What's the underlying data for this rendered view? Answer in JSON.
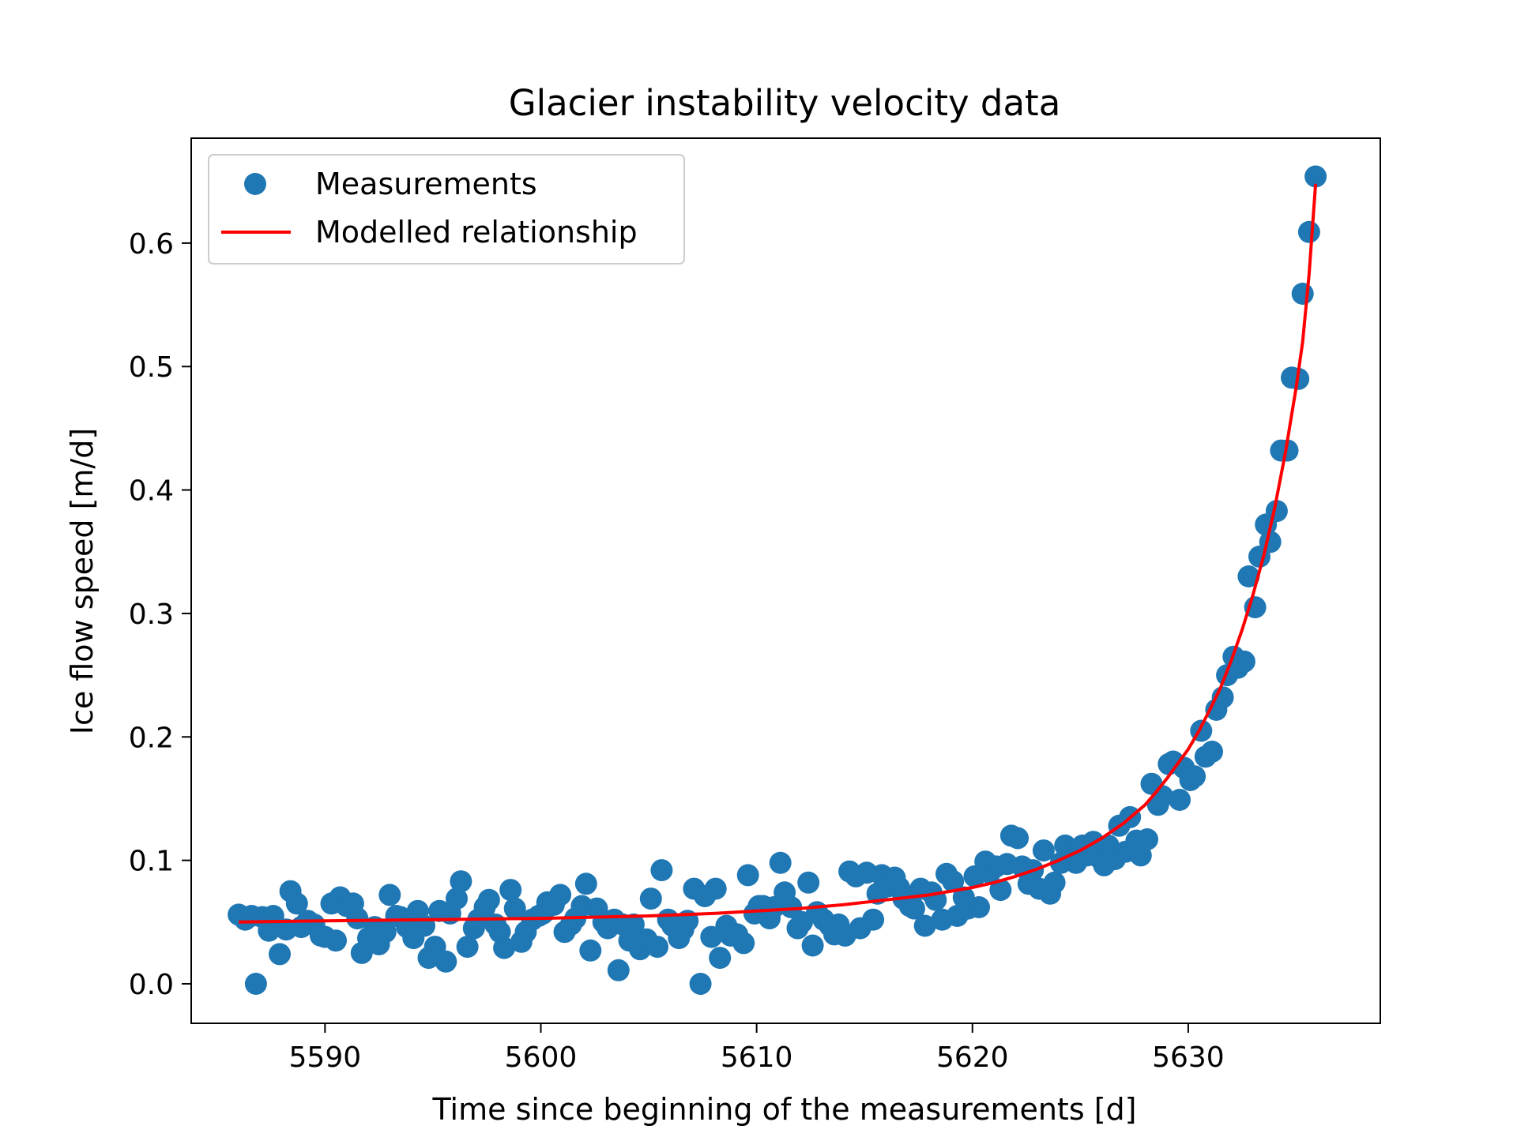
{
  "chart_data": {
    "type": "scatter",
    "title": "Glacier instability velocity data",
    "xlabel": "Time since beginning of the measurements [d]",
    "ylabel": "Ice flow speed [m/d]",
    "xlim": [
      5583.8,
      5638.9
    ],
    "ylim": [
      -0.032,
      0.685
    ],
    "xticks": [
      5590,
      5600,
      5610,
      5620,
      5630
    ],
    "yticks": [
      0.0,
      0.1,
      0.2,
      0.3,
      0.4,
      0.5,
      0.6
    ],
    "xtick_labels": [
      "5590",
      "5600",
      "5610",
      "5620",
      "5630"
    ],
    "ytick_labels": [
      "0.0",
      "0.1",
      "0.2",
      "0.3",
      "0.4",
      "0.5",
      "0.6"
    ],
    "grid": false,
    "legend_position": "top-left",
    "series": [
      {
        "name": "Measurements",
        "kind": "scatter",
        "color": "#1f77b4",
        "points": [
          [
            5586.0,
            0.056
          ],
          [
            5586.3,
            0.052
          ],
          [
            5586.6,
            0.055
          ],
          [
            5586.8,
            0.0
          ],
          [
            5587.1,
            0.054
          ],
          [
            5587.4,
            0.043
          ],
          [
            5587.6,
            0.055
          ],
          [
            5587.9,
            0.024
          ],
          [
            5588.2,
            0.044
          ],
          [
            5588.4,
            0.075
          ],
          [
            5588.7,
            0.065
          ],
          [
            5588.9,
            0.046
          ],
          [
            5589.2,
            0.051
          ],
          [
            5589.5,
            0.048
          ],
          [
            5589.8,
            0.039
          ],
          [
            5590.0,
            0.038
          ],
          [
            5590.3,
            0.065
          ],
          [
            5590.5,
            0.035
          ],
          [
            5590.7,
            0.07
          ],
          [
            5591.0,
            0.063
          ],
          [
            5591.3,
            0.065
          ],
          [
            5591.5,
            0.053
          ],
          [
            5591.7,
            0.025
          ],
          [
            5592.0,
            0.037
          ],
          [
            5592.3,
            0.046
          ],
          [
            5592.5,
            0.032
          ],
          [
            5592.8,
            0.042
          ],
          [
            5593.0,
            0.072
          ],
          [
            5593.3,
            0.055
          ],
          [
            5593.5,
            0.054
          ],
          [
            5593.8,
            0.046
          ],
          [
            5594.1,
            0.037
          ],
          [
            5594.3,
            0.059
          ],
          [
            5594.6,
            0.047
          ],
          [
            5594.8,
            0.021
          ],
          [
            5595.1,
            0.03
          ],
          [
            5595.3,
            0.059
          ],
          [
            5595.6,
            0.018
          ],
          [
            5595.8,
            0.057
          ],
          [
            5596.1,
            0.069
          ],
          [
            5596.3,
            0.083
          ],
          [
            5596.6,
            0.03
          ],
          [
            5596.9,
            0.045
          ],
          [
            5597.1,
            0.052
          ],
          [
            5597.4,
            0.062
          ],
          [
            5597.6,
            0.068
          ],
          [
            5597.9,
            0.048
          ],
          [
            5598.1,
            0.042
          ],
          [
            5598.3,
            0.029
          ],
          [
            5598.6,
            0.076
          ],
          [
            5598.8,
            0.061
          ],
          [
            5599.1,
            0.034
          ],
          [
            5599.3,
            0.042
          ],
          [
            5599.6,
            0.052
          ],
          [
            5599.9,
            0.055
          ],
          [
            5600.1,
            0.057
          ],
          [
            5600.3,
            0.066
          ],
          [
            5600.6,
            0.064
          ],
          [
            5600.9,
            0.072
          ],
          [
            5601.1,
            0.042
          ],
          [
            5601.4,
            0.048
          ],
          [
            5601.6,
            0.053
          ],
          [
            5601.9,
            0.063
          ],
          [
            5602.1,
            0.081
          ],
          [
            5602.3,
            0.027
          ],
          [
            5602.6,
            0.061
          ],
          [
            5602.9,
            0.05
          ],
          [
            5603.1,
            0.045
          ],
          [
            5603.4,
            0.052
          ],
          [
            5603.6,
            0.011
          ],
          [
            5603.8,
            0.048
          ],
          [
            5604.1,
            0.035
          ],
          [
            5604.3,
            0.048
          ],
          [
            5604.6,
            0.028
          ],
          [
            5604.9,
            0.036
          ],
          [
            5605.1,
            0.069
          ],
          [
            5605.4,
            0.03
          ],
          [
            5605.6,
            0.092
          ],
          [
            5605.9,
            0.052
          ],
          [
            5606.1,
            0.047
          ],
          [
            5606.4,
            0.037
          ],
          [
            5606.6,
            0.044
          ],
          [
            5606.8,
            0.051
          ],
          [
            5607.1,
            0.077
          ],
          [
            5607.4,
            0.0
          ],
          [
            5607.6,
            0.071
          ],
          [
            5607.9,
            0.038
          ],
          [
            5608.1,
            0.077
          ],
          [
            5608.3,
            0.021
          ],
          [
            5608.6,
            0.047
          ],
          [
            5608.8,
            0.039
          ],
          [
            5609.1,
            0.04
          ],
          [
            5609.4,
            0.033
          ],
          [
            5609.6,
            0.088
          ],
          [
            5609.9,
            0.057
          ],
          [
            5610.1,
            0.063
          ],
          [
            5610.3,
            0.063
          ],
          [
            5610.6,
            0.053
          ],
          [
            5610.8,
            0.062
          ],
          [
            5611.1,
            0.098
          ],
          [
            5611.3,
            0.074
          ],
          [
            5611.6,
            0.062
          ],
          [
            5611.9,
            0.045
          ],
          [
            5612.1,
            0.05
          ],
          [
            5612.4,
            0.082
          ],
          [
            5612.6,
            0.031
          ],
          [
            5612.8,
            0.058
          ],
          [
            5613.1,
            0.052
          ],
          [
            5613.4,
            0.047
          ],
          [
            5613.6,
            0.04
          ],
          [
            5613.8,
            0.048
          ],
          [
            5614.1,
            0.039
          ],
          [
            5614.3,
            0.091
          ],
          [
            5614.6,
            0.087
          ],
          [
            5614.8,
            0.045
          ],
          [
            5615.1,
            0.09
          ],
          [
            5615.4,
            0.052
          ],
          [
            5615.6,
            0.073
          ],
          [
            5615.8,
            0.088
          ],
          [
            5616.1,
            0.079
          ],
          [
            5616.4,
            0.086
          ],
          [
            5616.6,
            0.078
          ],
          [
            5616.8,
            0.069
          ],
          [
            5617.1,
            0.063
          ],
          [
            5617.3,
            0.061
          ],
          [
            5617.6,
            0.077
          ],
          [
            5617.8,
            0.047
          ],
          [
            5618.1,
            0.074
          ],
          [
            5618.3,
            0.068
          ],
          [
            5618.6,
            0.052
          ],
          [
            5618.8,
            0.089
          ],
          [
            5619.1,
            0.083
          ],
          [
            5619.3,
            0.055
          ],
          [
            5619.6,
            0.07
          ],
          [
            5619.8,
            0.061
          ],
          [
            5620.1,
            0.087
          ],
          [
            5620.3,
            0.062
          ],
          [
            5620.6,
            0.099
          ],
          [
            5620.8,
            0.09
          ],
          [
            5621.1,
            0.095
          ],
          [
            5621.3,
            0.076
          ],
          [
            5621.6,
            0.097
          ],
          [
            5621.8,
            0.12
          ],
          [
            5622.1,
            0.118
          ],
          [
            5622.3,
            0.095
          ],
          [
            5622.6,
            0.081
          ],
          [
            5622.8,
            0.092
          ],
          [
            5623.1,
            0.077
          ],
          [
            5623.3,
            0.108
          ],
          [
            5623.6,
            0.073
          ],
          [
            5623.8,
            0.082
          ],
          [
            5624.1,
            0.098
          ],
          [
            5624.3,
            0.112
          ],
          [
            5624.6,
            0.105
          ],
          [
            5624.8,
            0.098
          ],
          [
            5625.1,
            0.112
          ],
          [
            5625.3,
            0.104
          ],
          [
            5625.6,
            0.115
          ],
          [
            5625.8,
            0.103
          ],
          [
            5626.1,
            0.096
          ],
          [
            5626.3,
            0.112
          ],
          [
            5626.6,
            0.101
          ],
          [
            5626.8,
            0.128
          ],
          [
            5627.1,
            0.107
          ],
          [
            5627.3,
            0.135
          ],
          [
            5627.6,
            0.116
          ],
          [
            5627.8,
            0.104
          ],
          [
            5628.1,
            0.117
          ],
          [
            5628.3,
            0.162
          ],
          [
            5628.6,
            0.145
          ],
          [
            5628.8,
            0.152
          ],
          [
            5629.1,
            0.178
          ],
          [
            5629.3,
            0.18
          ],
          [
            5629.6,
            0.149
          ],
          [
            5629.8,
            0.175
          ],
          [
            5630.1,
            0.165
          ],
          [
            5630.3,
            0.168
          ],
          [
            5630.6,
            0.205
          ],
          [
            5630.8,
            0.184
          ],
          [
            5631.1,
            0.188
          ],
          [
            5631.3,
            0.222
          ],
          [
            5631.6,
            0.232
          ],
          [
            5631.8,
            0.25
          ],
          [
            5632.1,
            0.265
          ],
          [
            5632.3,
            0.256
          ],
          [
            5632.6,
            0.261
          ],
          [
            5632.8,
            0.33
          ],
          [
            5633.1,
            0.305
          ],
          [
            5633.3,
            0.346
          ],
          [
            5633.6,
            0.372
          ],
          [
            5633.8,
            0.358
          ],
          [
            5634.1,
            0.383
          ],
          [
            5634.3,
            0.432
          ],
          [
            5634.6,
            0.432
          ],
          [
            5634.8,
            0.491
          ],
          [
            5635.1,
            0.49
          ],
          [
            5635.3,
            0.559
          ],
          [
            5635.6,
            0.609
          ],
          [
            5635.9,
            0.654
          ]
        ]
      },
      {
        "name": "Modelled relationship",
        "kind": "line",
        "color": "#ff0000",
        "points": [
          [
            5586.0,
            0.05
          ],
          [
            5590.0,
            0.051
          ],
          [
            5595.0,
            0.052
          ],
          [
            5600.0,
            0.053
          ],
          [
            5605.0,
            0.055
          ],
          [
            5608.0,
            0.057
          ],
          [
            5610.0,
            0.059
          ],
          [
            5612.0,
            0.061
          ],
          [
            5614.0,
            0.064
          ],
          [
            5616.0,
            0.068
          ],
          [
            5618.0,
            0.072
          ],
          [
            5620.0,
            0.078
          ],
          [
            5621.0,
            0.082
          ],
          [
            5622.0,
            0.087
          ],
          [
            5623.0,
            0.093
          ],
          [
            5624.0,
            0.1
          ],
          [
            5625.0,
            0.108
          ],
          [
            5626.0,
            0.118
          ],
          [
            5627.0,
            0.13
          ],
          [
            5628.0,
            0.145
          ],
          [
            5628.5,
            0.155
          ],
          [
            5629.0,
            0.166
          ],
          [
            5629.5,
            0.178
          ],
          [
            5630.0,
            0.19
          ],
          [
            5630.5,
            0.205
          ],
          [
            5631.0,
            0.222
          ],
          [
            5631.5,
            0.24
          ],
          [
            5632.0,
            0.262
          ],
          [
            5632.5,
            0.287
          ],
          [
            5633.0,
            0.315
          ],
          [
            5633.5,
            0.347
          ],
          [
            5634.0,
            0.385
          ],
          [
            5634.5,
            0.43
          ],
          [
            5635.0,
            0.483
          ],
          [
            5635.3,
            0.52
          ],
          [
            5635.6,
            0.575
          ],
          [
            5635.9,
            0.648
          ]
        ]
      }
    ]
  }
}
